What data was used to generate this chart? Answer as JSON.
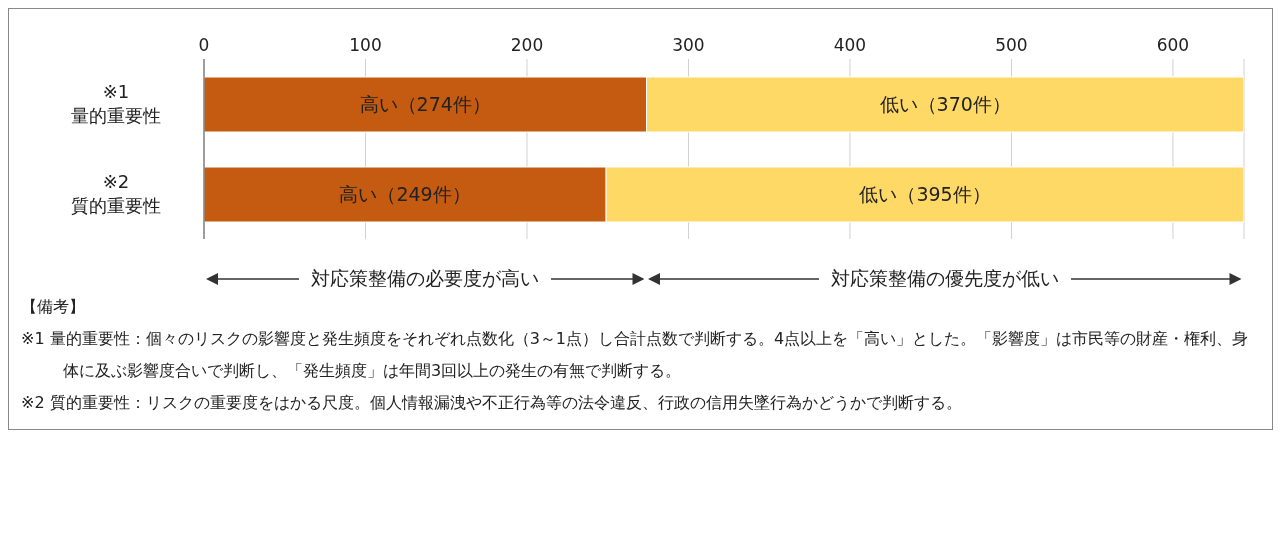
{
  "chart_data": {
    "type": "bar",
    "orientation": "horizontal",
    "stacked": true,
    "categories": [
      "※1\n量的重要性",
      "※2\n質的重要性"
    ],
    "series": [
      {
        "color": "#c55a11",
        "values": [
          274,
          249
        ],
        "value_labels": [
          "高い（274件）",
          "高い（249件）"
        ]
      },
      {
        "color": "#ffd966",
        "values": [
          370,
          395
        ],
        "value_labels": [
          "低い（370件）",
          "低い（395件）"
        ]
      }
    ],
    "xlim": [
      0,
      644
    ],
    "xticks": [
      0,
      100,
      200,
      300,
      400,
      500,
      600
    ],
    "grid": "x",
    "legend": false,
    "annotations": [
      "対応策整備の必要度が高い",
      "対応策整備の優先度が低い",
      "【備考】",
      "※1 量的重要性：個々のリスクの影響度と発生頻度をそれぞれ点数化（3～1点）し合計点数で判断する。4点以上を「高い」とした。「影響度」は市民等の財産・権利、身体に及ぶ影響度合いで判断し、「発生頻度」は年間3回以上の発生の有無で判断する。",
      "※2 質的重要性：リスクの重要度をはかる尺度。個人情報漏洩や不正行為等の法令違反、行政の信用失墜行為かどうかで判断する。"
    ]
  }
}
